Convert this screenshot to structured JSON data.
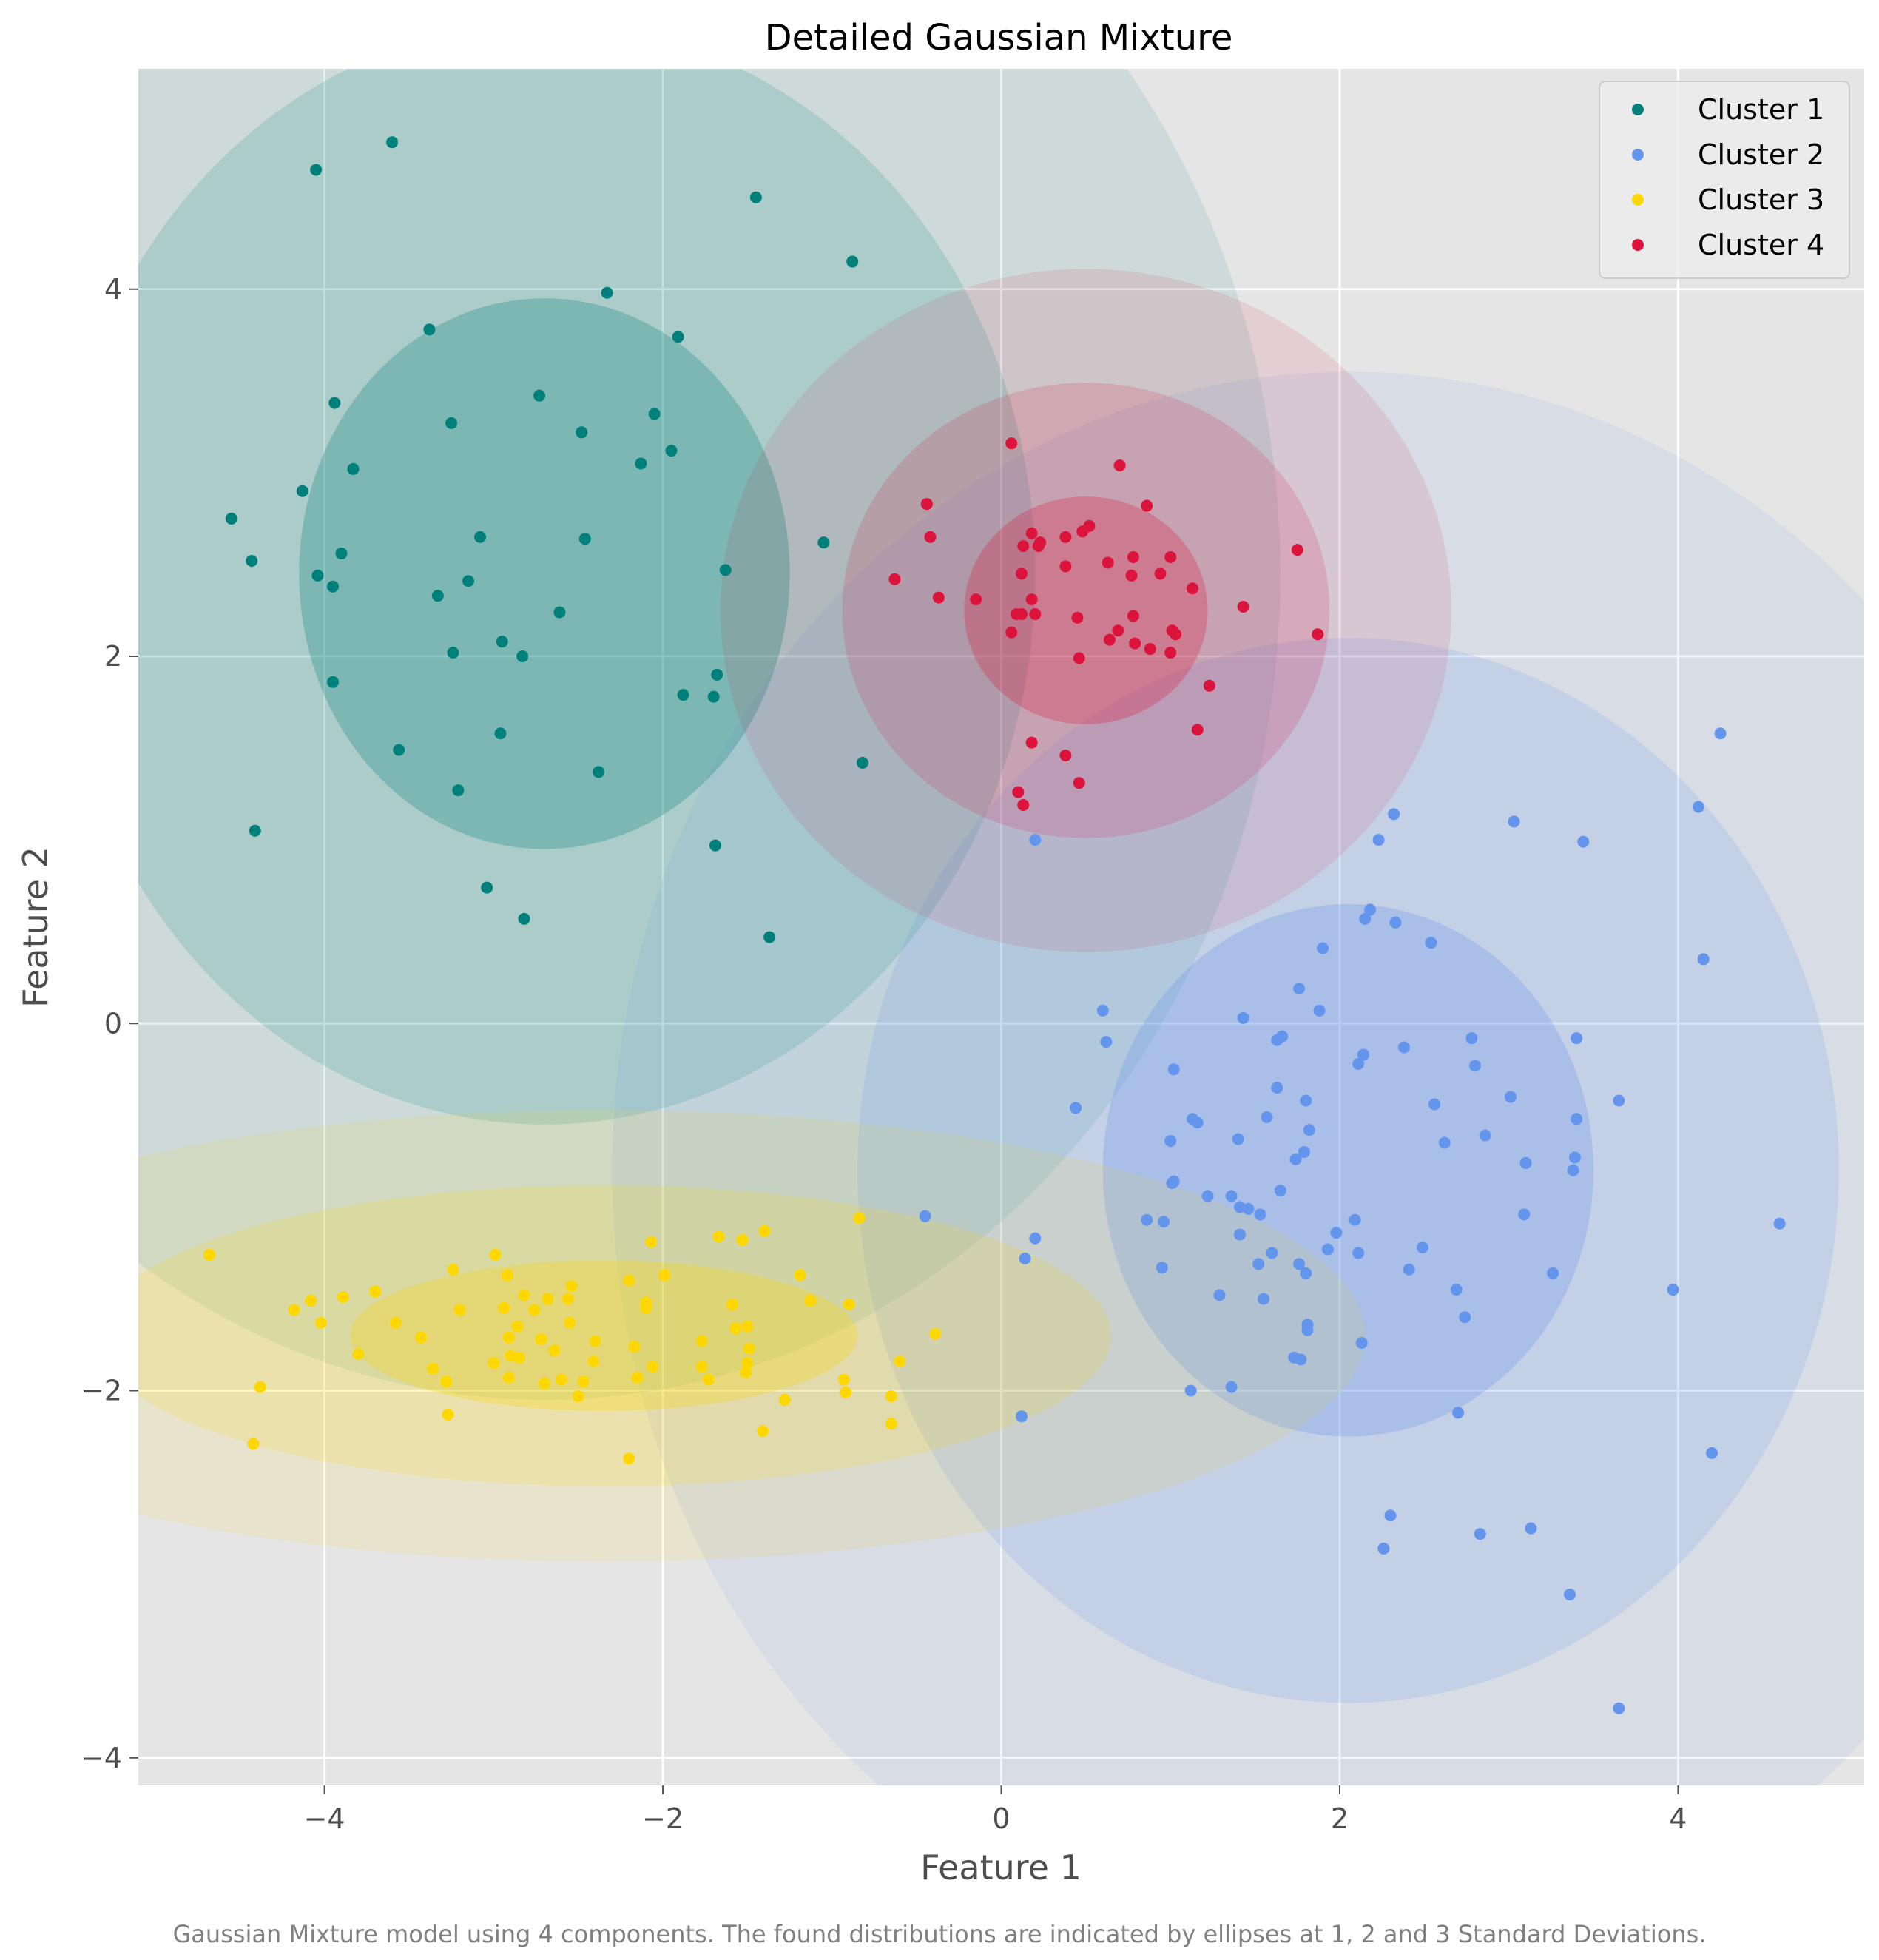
{
  "chart_data": {
    "type": "scatter",
    "title": "Detailed Gaussian Mixture",
    "xlabel": "Feature 1",
    "ylabel": "Feature 2",
    "xlim": [
      -5.1,
      5.1
    ],
    "ylim": [
      -4.15,
      5.2
    ],
    "x_ticks": [
      -4,
      -2,
      0,
      2,
      4
    ],
    "y_ticks": [
      -4,
      -2,
      0,
      2,
      4
    ],
    "grid": true,
    "legend_position": "top-right",
    "caption": "Gaussian Mixture model using 4 components. The found distributions are indicated by ellipses at 1, 2 and 3 Standard Deviations.",
    "series": [
      {
        "name": "Cluster 1",
        "color": "#00807a",
        "ellipse": {
          "center": [
            -2.7,
            2.45
          ],
          "sd_x": 1.45,
          "sd_y": 1.5,
          "levels": [
            1,
            2,
            3
          ]
        },
        "points": [
          [
            -3.6,
            4.8
          ],
          [
            -4.05,
            4.65
          ],
          [
            -1.45,
            4.5
          ],
          [
            -0.88,
            4.15
          ],
          [
            -2.33,
            3.98
          ],
          [
            -3.38,
            3.78
          ],
          [
            -1.91,
            3.74
          ],
          [
            -3.94,
            3.38
          ],
          [
            -2.73,
            3.42
          ],
          [
            -2.05,
            3.32
          ],
          [
            -3.25,
            3.27
          ],
          [
            -2.48,
            3.22
          ],
          [
            -1.95,
            3.12
          ],
          [
            -2.13,
            3.05
          ],
          [
            -3.83,
            3.02
          ],
          [
            -4.13,
            2.9
          ],
          [
            -4.55,
            2.75
          ],
          [
            -3.08,
            2.65
          ],
          [
            -2.46,
            2.64
          ],
          [
            -1.05,
            2.62
          ],
          [
            -3.9,
            2.56
          ],
          [
            -4.43,
            2.52
          ],
          [
            -1.63,
            2.47
          ],
          [
            -4.04,
            2.44
          ],
          [
            -3.95,
            2.38
          ],
          [
            -3.15,
            2.41
          ],
          [
            -3.33,
            2.33
          ],
          [
            -2.61,
            2.24
          ],
          [
            -2.95,
            2.08
          ],
          [
            -3.24,
            2.02
          ],
          [
            -2.83,
            2.0
          ],
          [
            -1.68,
            1.9
          ],
          [
            -3.95,
            1.86
          ],
          [
            -1.88,
            1.79
          ],
          [
            -1.7,
            1.78
          ],
          [
            -2.96,
            1.58
          ],
          [
            -3.56,
            1.49
          ],
          [
            -0.82,
            1.42
          ],
          [
            -2.38,
            1.37
          ],
          [
            -3.21,
            1.27
          ],
          [
            -4.41,
            1.05
          ],
          [
            -1.69,
            0.97
          ],
          [
            -3.04,
            0.74
          ],
          [
            -2.82,
            0.57
          ],
          [
            -1.37,
            0.47
          ]
        ]
      },
      {
        "name": "Cluster 2",
        "color": "#6495ed",
        "ellipse": {
          "center": [
            2.05,
            -0.8
          ],
          "sd_x": 1.45,
          "sd_y": 1.45,
          "levels": [
            1,
            2,
            3
          ]
        },
        "points": [
          [
            4.25,
            1.58
          ],
          [
            4.12,
            1.18
          ],
          [
            2.32,
            1.14
          ],
          [
            3.03,
            1.1
          ],
          [
            2.23,
            1.0
          ],
          [
            3.44,
            0.99
          ],
          [
            0.2,
            1.0
          ],
          [
            2.15,
            0.57
          ],
          [
            2.18,
            0.62
          ],
          [
            2.33,
            0.55
          ],
          [
            2.54,
            0.44
          ],
          [
            1.9,
            0.41
          ],
          [
            4.15,
            0.35
          ],
          [
            1.76,
            0.19
          ],
          [
            1.88,
            0.07
          ],
          [
            1.43,
            0.03
          ],
          [
            0.6,
            0.07
          ],
          [
            0.62,
            -0.1
          ],
          [
            1.63,
            -0.09
          ],
          [
            1.66,
            -0.07
          ],
          [
            2.78,
            -0.08
          ],
          [
            2.38,
            -0.13
          ],
          [
            3.4,
            -0.08
          ],
          [
            2.14,
            -0.17
          ],
          [
            2.11,
            -0.22
          ],
          [
            2.8,
            -0.23
          ],
          [
            1.02,
            -0.25
          ],
          [
            1.63,
            -0.35
          ],
          [
            3.01,
            -0.4
          ],
          [
            3.65,
            -0.42
          ],
          [
            1.8,
            -0.42
          ],
          [
            2.56,
            -0.44
          ],
          [
            0.44,
            -0.46
          ],
          [
            1.57,
            -0.51
          ],
          [
            1.13,
            -0.52
          ],
          [
            1.16,
            -0.54
          ],
          [
            3.4,
            -0.52
          ],
          [
            1.82,
            -0.58
          ],
          [
            2.86,
            -0.61
          ],
          [
            1.4,
            -0.63
          ],
          [
            1.0,
            -0.64
          ],
          [
            2.62,
            -0.65
          ],
          [
            1.79,
            -0.7
          ],
          [
            3.39,
            -0.73
          ],
          [
            1.74,
            -0.74
          ],
          [
            3.1,
            -0.76
          ],
          [
            3.38,
            -0.8
          ],
          [
            1.02,
            -0.86
          ],
          [
            1.01,
            -0.87
          ],
          [
            1.65,
            -0.91
          ],
          [
            1.36,
            -0.94
          ],
          [
            1.22,
            -0.94
          ],
          [
            1.41,
            -1.0
          ],
          [
            1.46,
            -1.01
          ],
          [
            1.53,
            -1.04
          ],
          [
            3.09,
            -1.04
          ],
          [
            -0.45,
            -1.05
          ],
          [
            0.86,
            -1.07
          ],
          [
            2.09,
            -1.07
          ],
          [
            0.96,
            -1.08
          ],
          [
            4.6,
            -1.09
          ],
          [
            1.98,
            -1.14
          ],
          [
            1.41,
            -1.15
          ],
          [
            0.2,
            -1.17
          ],
          [
            2.49,
            -1.22
          ],
          [
            1.93,
            -1.23
          ],
          [
            1.6,
            -1.25
          ],
          [
            2.11,
            -1.25
          ],
          [
            0.14,
            -1.28
          ],
          [
            1.52,
            -1.31
          ],
          [
            1.76,
            -1.31
          ],
          [
            0.95,
            -1.33
          ],
          [
            2.41,
            -1.34
          ],
          [
            1.8,
            -1.36
          ],
          [
            3.26,
            -1.36
          ],
          [
            2.69,
            -1.45
          ],
          [
            3.97,
            -1.45
          ],
          [
            1.29,
            -1.48
          ],
          [
            1.55,
            -1.5
          ],
          [
            2.74,
            -1.6
          ],
          [
            1.81,
            -1.64
          ],
          [
            1.81,
            -1.67
          ],
          [
            2.13,
            -1.74
          ],
          [
            1.73,
            -1.82
          ],
          [
            1.77,
            -1.83
          ],
          [
            1.36,
            -1.98
          ],
          [
            1.12,
            -2.0
          ],
          [
            0.12,
            -2.14
          ],
          [
            2.7,
            -2.12
          ],
          [
            4.2,
            -2.34
          ],
          [
            2.3,
            -2.68
          ],
          [
            2.83,
            -2.78
          ],
          [
            3.13,
            -2.75
          ],
          [
            2.26,
            -2.86
          ],
          [
            3.36,
            -3.11
          ],
          [
            3.65,
            -3.73
          ]
        ]
      },
      {
        "name": "Cluster 3",
        "color": "#ffd700",
        "ellipse": {
          "center": [
            -2.35,
            -1.7
          ],
          "sd_x": 1.5,
          "sd_y": 0.41,
          "levels": [
            1,
            2,
            3
          ]
        },
        "points": [
          [
            -4.68,
            -1.26
          ],
          [
            -2.07,
            -1.19
          ],
          [
            -1.53,
            -1.18
          ],
          [
            -1.67,
            -1.16
          ],
          [
            -1.4,
            -1.13
          ],
          [
            -0.84,
            -1.06
          ],
          [
            -2.99,
            -1.26
          ],
          [
            -3.24,
            -1.34
          ],
          [
            -1.99,
            -1.37
          ],
          [
            -2.92,
            -1.37
          ],
          [
            -1.19,
            -1.37
          ],
          [
            -2.2,
            -1.4
          ],
          [
            -2.54,
            -1.43
          ],
          [
            -3.7,
            -1.46
          ],
          [
            -2.82,
            -1.48
          ],
          [
            -3.89,
            -1.49
          ],
          [
            -4.08,
            -1.51
          ],
          [
            -2.1,
            -1.52
          ],
          [
            -2.68,
            -1.5
          ],
          [
            -2.56,
            -1.5
          ],
          [
            -1.13,
            -1.51
          ],
          [
            -0.9,
            -1.53
          ],
          [
            -4.18,
            -1.56
          ],
          [
            -2.94,
            -1.55
          ],
          [
            -2.76,
            -1.56
          ],
          [
            -2.1,
            -1.55
          ],
          [
            -1.59,
            -1.53
          ],
          [
            -3.2,
            -1.56
          ],
          [
            -2.86,
            -1.65
          ],
          [
            -4.02,
            -1.63
          ],
          [
            -3.58,
            -1.63
          ],
          [
            -2.55,
            -1.63
          ],
          [
            -1.5,
            -1.65
          ],
          [
            -1.57,
            -1.66
          ],
          [
            -0.39,
            -1.69
          ],
          [
            -3.43,
            -1.71
          ],
          [
            -2.91,
            -1.71
          ],
          [
            -2.4,
            -1.73
          ],
          [
            -1.77,
            -1.73
          ],
          [
            -2.17,
            -1.76
          ],
          [
            -1.49,
            -1.77
          ],
          [
            -3.8,
            -1.8
          ],
          [
            -2.72,
            -1.72
          ],
          [
            -2.64,
            -1.78
          ],
          [
            -2.9,
            -1.81
          ],
          [
            -2.85,
            -1.82
          ],
          [
            -2.41,
            -1.84
          ],
          [
            -1.5,
            -1.85
          ],
          [
            -0.6,
            -1.84
          ],
          [
            -3.0,
            -1.85
          ],
          [
            -1.77,
            -1.87
          ],
          [
            -3.36,
            -1.88
          ],
          [
            -2.06,
            -1.87
          ],
          [
            -1.51,
            -1.9
          ],
          [
            -2.91,
            -1.93
          ],
          [
            -2.15,
            -1.93
          ],
          [
            -2.6,
            -1.94
          ],
          [
            -1.73,
            -1.94
          ],
          [
            -3.28,
            -1.95
          ],
          [
            -0.93,
            -1.94
          ],
          [
            -2.7,
            -1.96
          ],
          [
            -2.47,
            -1.95
          ],
          [
            -4.38,
            -1.98
          ],
          [
            -0.92,
            -2.01
          ],
          [
            -2.5,
            -2.03
          ],
          [
            -0.65,
            -2.03
          ],
          [
            -1.28,
            -2.05
          ],
          [
            -3.27,
            -2.13
          ],
          [
            -0.65,
            -2.18
          ],
          [
            -1.41,
            -2.22
          ],
          [
            -4.42,
            -2.29
          ],
          [
            -2.2,
            -2.37
          ]
        ]
      },
      {
        "name": "Cluster 4",
        "color": "#dc143c",
        "ellipse": {
          "center": [
            0.5,
            2.25
          ],
          "sd_x": 0.72,
          "sd_y": 0.62,
          "levels": [
            1,
            2,
            3
          ]
        },
        "points": [
          [
            0.06,
            3.16
          ],
          [
            0.7,
            3.04
          ],
          [
            -0.44,
            2.83
          ],
          [
            0.86,
            2.82
          ],
          [
            0.52,
            2.71
          ],
          [
            0.48,
            2.68
          ],
          [
            0.18,
            2.67
          ],
          [
            0.38,
            2.65
          ],
          [
            -0.42,
            2.65
          ],
          [
            0.23,
            2.62
          ],
          [
            0.13,
            2.6
          ],
          [
            0.22,
            2.6
          ],
          [
            1.75,
            2.58
          ],
          [
            1.0,
            2.54
          ],
          [
            0.78,
            2.54
          ],
          [
            0.63,
            2.51
          ],
          [
            0.38,
            2.49
          ],
          [
            0.12,
            2.45
          ],
          [
            0.94,
            2.45
          ],
          [
            0.77,
            2.44
          ],
          [
            -0.63,
            2.42
          ],
          [
            1.13,
            2.37
          ],
          [
            -0.37,
            2.32
          ],
          [
            -0.15,
            2.31
          ],
          [
            0.18,
            2.31
          ],
          [
            1.43,
            2.27
          ],
          [
            0.09,
            2.23
          ],
          [
            0.12,
            2.23
          ],
          [
            0.2,
            2.23
          ],
          [
            0.78,
            2.22
          ],
          [
            0.45,
            2.21
          ],
          [
            0.69,
            2.14
          ],
          [
            1.01,
            2.14
          ],
          [
            1.03,
            2.12
          ],
          [
            0.06,
            2.13
          ],
          [
            1.87,
            2.12
          ],
          [
            0.64,
            2.09
          ],
          [
            0.79,
            2.07
          ],
          [
            0.88,
            2.04
          ],
          [
            1.0,
            2.02
          ],
          [
            0.46,
            1.99
          ],
          [
            1.23,
            1.84
          ],
          [
            1.16,
            1.6
          ],
          [
            0.18,
            1.53
          ],
          [
            0.38,
            1.46
          ],
          [
            0.46,
            1.31
          ],
          [
            0.1,
            1.26
          ],
          [
            0.13,
            1.19
          ]
        ]
      }
    ]
  }
}
